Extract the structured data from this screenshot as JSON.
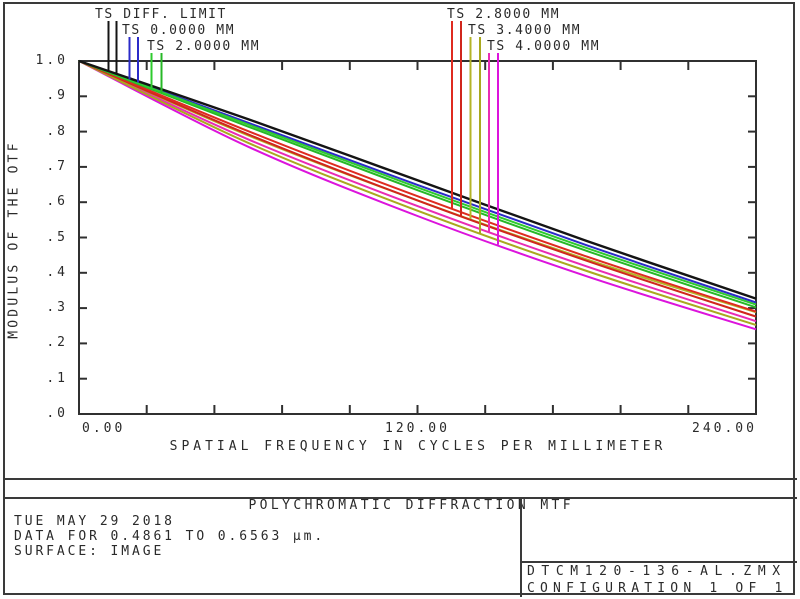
{
  "chart_data": {
    "type": "line",
    "title": "POLYCHROMATIC DIFFRACTION MTF",
    "xlabel": "SPATIAL FREQUENCY IN CYCLES PER MILLIMETER",
    "ylabel": "MODULUS OF THE OTF",
    "xlim": [
      0,
      240
    ],
    "ylim": [
      0.0,
      1.0
    ],
    "grid": "off",
    "x_tick_labels": [
      "0.00",
      "120.00",
      "240.00"
    ],
    "x_minor_tick_step": 24,
    "y_tick_labels": [
      "1.0",
      ".9",
      ".8",
      ".7",
      ".6",
      ".5",
      ".4",
      ".3",
      ".2",
      ".1",
      ".0"
    ],
    "legend_position": "top-callouts",
    "legend": [
      {
        "label": "TS DIFF. LIMIT",
        "color": "#141414"
      },
      {
        "label": "TS 0.0000 MM",
        "color": "#2b2bc8"
      },
      {
        "label": "TS 2.0000 MM",
        "color": "#2ecb2e"
      },
      {
        "label": "TS 2.8000 MM",
        "color": "#df2b20"
      },
      {
        "label": "TS 3.4000 MM",
        "color": "#b4b428"
      },
      {
        "label": "TS 4.0000 MM",
        "color": "#e12bd4"
      }
    ],
    "x_samples": [
      0,
      60,
      120,
      180,
      240
    ],
    "series": [
      {
        "name": "TS DIFF. LIMIT",
        "color": "#141414",
        "values": [
          1.0,
          0.835,
          0.662,
          0.49,
          0.327
        ]
      },
      {
        "name": "TS 0.0000 MM",
        "color": "#2b2bc8",
        "values": [
          1.0,
          0.825,
          0.649,
          0.478,
          0.316
        ]
      },
      {
        "name": "TS 2.0000 MM (T)",
        "color": "#2ecb2e",
        "values": [
          1.0,
          0.82,
          0.642,
          0.47,
          0.31
        ]
      },
      {
        "name": "TS 2.0000 MM (S)",
        "color": "#27b827",
        "values": [
          1.0,
          0.814,
          0.634,
          0.462,
          0.302
        ]
      },
      {
        "name": "TS 2.8000 MM (T)",
        "color": "#df2b20",
        "values": [
          1.0,
          0.801,
          0.617,
          0.446,
          0.29
        ]
      },
      {
        "name": "TS 2.8000 MM (S)",
        "color": "#d0261c",
        "values": [
          1.0,
          0.792,
          0.605,
          0.434,
          0.276
        ]
      },
      {
        "name": "TS 3.4000 MM (T)",
        "color": "#b4b428",
        "values": [
          1.0,
          0.789,
          0.605,
          0.438,
          0.288
        ]
      },
      {
        "name": "TS 3.4000 MM (S)",
        "color": "#a9a91f",
        "values": [
          1.0,
          0.768,
          0.576,
          0.405,
          0.252
        ]
      },
      {
        "name": "TS 4.0000 MM (T)",
        "color": "#e92bb4",
        "values": [
          1.0,
          0.778,
          0.589,
          0.418,
          0.263
        ]
      },
      {
        "name": "TS 4.0000 MM (S)",
        "color": "#dc14dc",
        "values": [
          1.0,
          0.757,
          0.561,
          0.39,
          0.24
        ]
      }
    ]
  },
  "footer": {
    "timestamp": "TUE MAY 29 2018",
    "data_range": "DATA FOR 0.4861 TO 0.6563 µm.",
    "surface": "SURFACE: IMAGE",
    "file_name": "DTCM120-136-AL.ZMX",
    "configuration": "CONFIGURATION 1 OF 1"
  }
}
